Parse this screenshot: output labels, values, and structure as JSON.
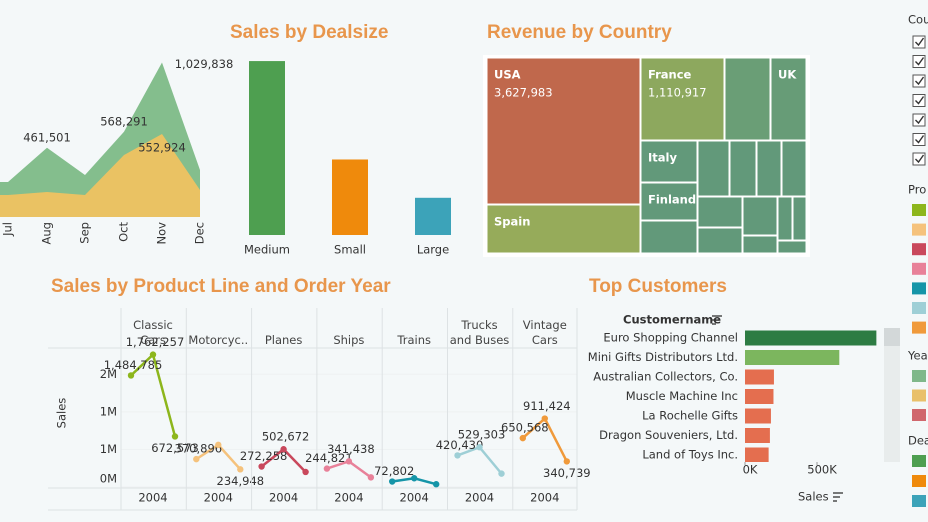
{
  "chart_data": [
    {
      "type": "area",
      "categories": [
        "Jul",
        "Aug",
        "Sep",
        "Oct",
        "Nov",
        "Dec"
      ],
      "series": [
        {
          "color": "#7dbb87",
          "values": [
            233000,
            461501,
            280000,
            568291,
            1029838,
            313000
          ],
          "value_labels": [
            null,
            "461,501",
            null,
            "568,291",
            "1,029,838",
            null
          ]
        },
        {
          "color": "#efc261",
          "values": [
            147000,
            167000,
            147000,
            413000,
            552924,
            180000
          ],
          "value_labels": [
            null,
            null,
            null,
            null,
            "552,924",
            null
          ]
        }
      ],
      "ylim": [
        0,
        1100000
      ]
    },
    {
      "type": "bar",
      "title": "Sales by Dealsize",
      "categories": [
        "Medium",
        "Small",
        "Large"
      ],
      "values": [
        6087432,
        2643077,
        1302119
      ],
      "colors": [
        "#4e9f50",
        "#ef8a0c",
        "#3ca3b9"
      ],
      "ylim": [
        0,
        6300000
      ]
    },
    {
      "type": "treemap",
      "title": "Revenue by Country",
      "categories": [
        "USA",
        "Spain",
        "France",
        null,
        "UK",
        "Italy",
        "Finland",
        null,
        null,
        null,
        null,
        null,
        null,
        null,
        null,
        null,
        null,
        null,
        null
      ],
      "values": [
        3627983,
        1215686,
        1110917,
        630623,
        478880,
        374674,
        329581,
        307463,
        288488,
        245637,
        224079,
        220472,
        210014,
        202063,
        188168,
        117714,
        108413,
        94016,
        57756
      ],
      "value_labels": [
        "3,627,983",
        null,
        "1,110,917",
        null,
        null,
        null,
        null,
        null,
        null,
        null,
        null,
        null,
        null,
        null,
        null,
        null,
        null,
        null,
        null
      ],
      "colors": [
        "#c0684c",
        "#96ab5a",
        "#8da85e",
        "#6a9e76",
        "#679c77",
        "#62997a",
        "#62997a",
        "#62997a",
        "#62997a",
        "#62997a",
        "#62997a",
        "#62997a",
        "#62997a",
        "#62997a",
        "#62997a",
        "#62997a",
        "#62997a",
        "#62997a",
        "#62997a"
      ]
    },
    {
      "type": "line",
      "title": "Sales by Product Line and Order Year",
      "y_label": "Sales",
      "categories": [
        null,
        "2004",
        null
      ],
      "facets": [
        {
          "name": "Classic Cars",
          "color": "#8db61c",
          "values": [
            1484785,
            1762257,
            672573
          ],
          "value_labels": [
            "1,484,785",
            "1,762,257",
            "672,573"
          ]
        },
        {
          "name": "Motorcyc..",
          "color": "#f5c27c",
          "values": [
            370896,
            560545,
            234948
          ],
          "value_labels": [
            "370,896",
            null,
            "234,948"
          ]
        },
        {
          "name": "Planes",
          "color": "#c9485c",
          "values": [
            272258,
            502672,
            200074
          ],
          "value_labels": [
            "272,258",
            "502,672",
            null
          ]
        },
        {
          "name": "Ships",
          "color": "#e88199",
          "values": [
            244821,
            341438,
            128178
          ],
          "value_labels": [
            "244,821",
            "341,438",
            null
          ]
        },
        {
          "name": "Trains",
          "color": "#1595a8",
          "values": [
            72802,
            116524,
            36917
          ],
          "value_labels": [
            "72,802",
            null,
            null
          ]
        },
        {
          "name": "Trucks and Buses",
          "color": "#9ecfd6",
          "values": [
            420430,
            529303,
            178057
          ],
          "value_labels": [
            "420,430",
            "529,303",
            null
          ]
        },
        {
          "name": "Vintage Cars",
          "color": "#f09a3b",
          "values": [
            650568,
            911424,
            340739
          ],
          "value_labels": [
            "650,568",
            "911,424",
            "340,739"
          ]
        }
      ],
      "ylim": [
        0,
        1850000
      ],
      "yticks": [
        {
          "value": 0,
          "label": "0M"
        },
        {
          "value": 500000,
          "label": "1M"
        },
        {
          "value": 1000000,
          "label": "1M"
        },
        {
          "value": 1500000,
          "label": "2M"
        }
      ]
    },
    {
      "type": "hbar",
      "title": "Top Customers",
      "category_label": "Customername",
      "x_label": "Sales",
      "categories": [
        "Euro Shopping Channel",
        "Mini Gifts Distributors Ltd.",
        "Australian Collectors, Co.",
        "Muscle Machine Inc",
        "La Rochelle Gifts",
        "Dragon Souveniers, Ltd.",
        "Land of Toys Inc."
      ],
      "values": [
        912294,
        654858,
        200995,
        197737,
        180125,
        172990,
        164069
      ],
      "colors": [
        "#2d7c43",
        "#7cb65e",
        "#e46e4f",
        "#e46e4f",
        "#e46e4f",
        "#e46e4f",
        "#e46e4f"
      ],
      "xlim": [
        0,
        950000
      ],
      "xticks": [
        {
          "value": 0,
          "label": "0K"
        },
        {
          "value": 500000,
          "label": "500K"
        }
      ]
    }
  ],
  "filters": [
    {
      "title": "Cou"
    },
    {
      "title": "Pro",
      "colors": [
        "#8db61c",
        "#f5c27c",
        "#c9485c",
        "#e88199",
        "#1595a8",
        "#9ecfd6",
        "#f09a3b"
      ]
    },
    {
      "title": "Yea",
      "colors": [
        "#7fb88a",
        "#e9c06a",
        "#d0676d"
      ]
    },
    {
      "title": "Dea",
      "colors": [
        "#4e9f50",
        "#ef8a0c",
        "#3ca3b9"
      ]
    }
  ]
}
